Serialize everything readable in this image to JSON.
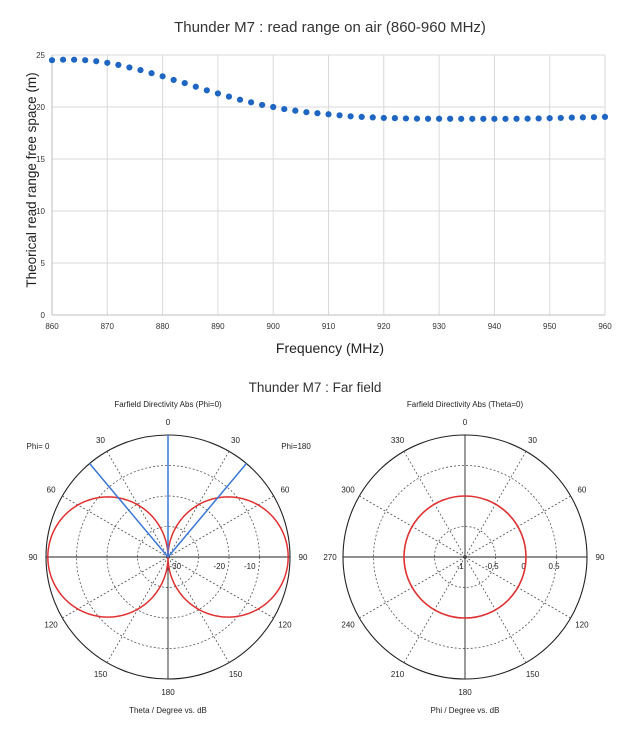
{
  "chart_data": [
    {
      "type": "scatter",
      "title": "Thunder M7 : read range on air (860-960 MHz)",
      "xlabel": "Frequency (MHz)",
      "ylabel": "Theorical read range free space (m)",
      "xlim": [
        860,
        960
      ],
      "ylim": [
        0,
        25
      ],
      "xticks": [
        860,
        870,
        880,
        890,
        900,
        910,
        920,
        930,
        940,
        950,
        960
      ],
      "yticks": [
        0,
        5,
        10,
        15,
        20,
        25
      ],
      "grid": true,
      "marker_color": "#1f66c2",
      "series": [
        {
          "x": [
            860,
            862,
            864,
            866,
            868,
            870,
            872,
            874,
            876,
            878,
            880,
            882,
            884,
            886,
            888,
            890,
            892,
            894,
            896,
            898,
            900,
            902,
            904,
            906,
            908,
            910,
            912,
            914,
            916,
            918,
            920,
            922,
            924,
            926,
            928,
            930,
            932,
            934,
            936,
            938,
            940,
            942,
            944,
            946,
            948,
            950,
            952,
            954,
            956,
            958,
            960
          ],
          "y": [
            24.5,
            24.55,
            24.55,
            24.5,
            24.4,
            24.25,
            24.05,
            23.8,
            23.55,
            23.25,
            22.95,
            22.6,
            22.3,
            21.95,
            21.6,
            21.3,
            21.0,
            20.7,
            20.45,
            20.2,
            20.0,
            19.8,
            19.65,
            19.5,
            19.4,
            19.3,
            19.2,
            19.1,
            19.05,
            19.0,
            18.95,
            18.93,
            18.9,
            18.88,
            18.87,
            18.87,
            18.87,
            18.86,
            18.86,
            18.86,
            18.86,
            18.86,
            18.87,
            18.88,
            18.9,
            18.92,
            18.95,
            18.98,
            19.0,
            19.02,
            19.05
          ]
        }
      ]
    },
    {
      "type": "polar",
      "section_title": "Thunder M7 : Far field",
      "title": "Farfield Directivity Abs (Phi=0)",
      "xlabel": "Theta / Degree vs. dB",
      "side_labels": [
        "Phi=  0",
        "Phi=180"
      ],
      "angle_labels": [
        "0",
        "30",
        "60",
        "90",
        "120",
        "150",
        "180",
        "150",
        "120",
        "90",
        "60",
        "30"
      ],
      "radial_labels": [
        "-30",
        "-20",
        "-10"
      ],
      "radial_range": [
        -30,
        0
      ],
      "lobe_color": "#e03030",
      "beam_color": "#3a78d8",
      "beam_angles_deg": [
        0,
        40,
        -40
      ],
      "pattern": "figure-eight"
    },
    {
      "type": "polar",
      "title": "Farfield Directivity Abs (Theta=0)",
      "xlabel": "Phi / Degree vs. dB",
      "angle_labels": [
        "0",
        "330",
        "300",
        "270",
        "240",
        "210",
        "180",
        "150",
        "120",
        "90",
        "60",
        "30"
      ],
      "radial_labels": [
        "-1",
        "-0.5",
        "0",
        "0.5"
      ],
      "radial_range": [
        -1,
        1
      ],
      "lobe_color": "#e03030",
      "circle_value": 0,
      "pattern": "circle"
    }
  ]
}
